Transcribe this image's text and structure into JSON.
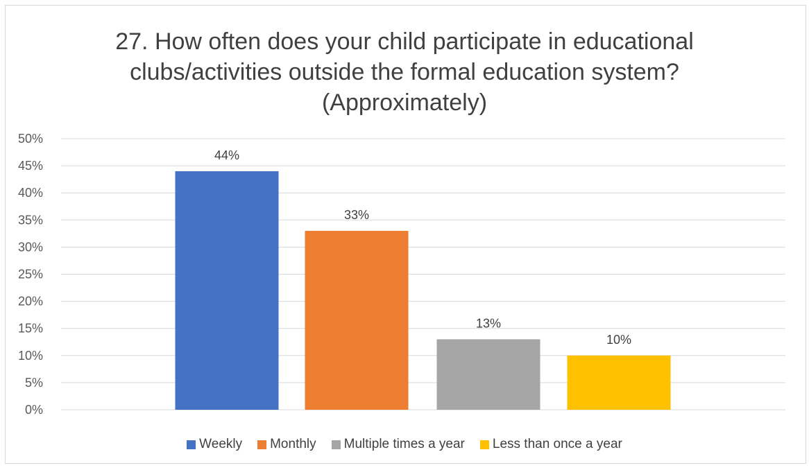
{
  "chart_data": {
    "type": "bar",
    "title_lines": [
      "27. How often does your child participate in educational",
      "clubs/activities outside the formal education system?",
      "(Approximately)"
    ],
    "categories": [
      "Weekly",
      "Monthly",
      "Multiple times a year",
      "Less than once a year"
    ],
    "values": [
      44,
      33,
      13,
      10
    ],
    "data_labels": [
      "44%",
      "33%",
      "13%",
      "10%"
    ],
    "colors": [
      "#4472c4",
      "#ed7d31",
      "#a5a5a5",
      "#ffc000"
    ],
    "ylim": [
      0,
      50
    ],
    "y_ticks": [
      "0%",
      "5%",
      "10%",
      "15%",
      "20%",
      "25%",
      "30%",
      "35%",
      "40%",
      "45%",
      "50%"
    ],
    "grid": true,
    "legend_position": "bottom"
  }
}
